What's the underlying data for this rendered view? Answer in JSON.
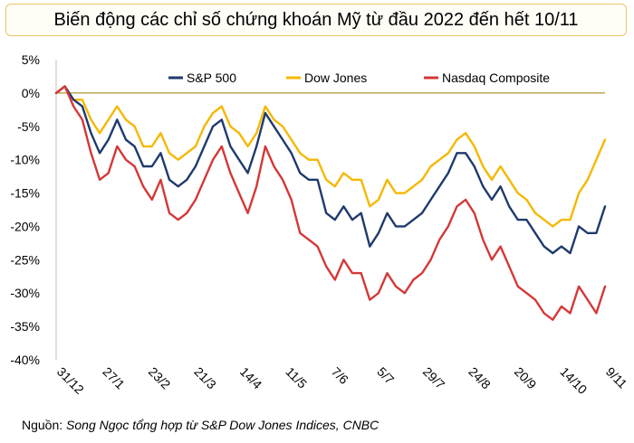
{
  "chart_data": {
    "type": "line",
    "title": "Biến động các chỉ số chứng khoán Mỹ từ đầu 2022 đến hết 10/11",
    "ylim": [
      -40,
      5
    ],
    "y_ticks": [
      5,
      0,
      -5,
      -10,
      -15,
      -20,
      -25,
      -30,
      -35,
      -40
    ],
    "y_tick_labels": [
      "5%",
      "0%",
      "-5%",
      "-10%",
      "-15%",
      "-20%",
      "-25%",
      "-30%",
      "-35%",
      "-40%"
    ],
    "x_tick_labels": [
      "31/12",
      "27/1",
      "23/2",
      "21/3",
      "14/4",
      "11/5",
      "7/6",
      "5/7",
      "29/7",
      "24/8",
      "20/9",
      "14/10",
      "9/11"
    ],
    "grid": false,
    "legend_position": "top",
    "series": [
      {
        "name": "S&P 500",
        "color": "#1f3a6e",
        "values": [
          0,
          1,
          -1,
          -2,
          -6,
          -9,
          -7,
          -4,
          -7,
          -8,
          -11,
          -11,
          -9,
          -13,
          -14,
          -13,
          -11,
          -8,
          -5,
          -4,
          -8,
          -10,
          -12,
          -8,
          -3,
          -5,
          -7,
          -9,
          -12,
          -13,
          -13,
          -18,
          -19,
          -17,
          -19,
          -18,
          -23,
          -21,
          -18,
          -20,
          -20,
          -19,
          -18,
          -16,
          -14,
          -12,
          -9,
          -9,
          -11,
          -14,
          -16,
          -14,
          -17,
          -19,
          -19,
          -21,
          -23,
          -24,
          -23,
          -24,
          -20,
          -21,
          -21,
          -17
        ]
      },
      {
        "name": "Dow Jones",
        "color": "#f5b800",
        "values": [
          0,
          1,
          -1,
          -1,
          -4,
          -6,
          -4,
          -2,
          -4,
          -5,
          -8,
          -8,
          -6,
          -9,
          -10,
          -9,
          -8,
          -5,
          -3,
          -2,
          -5,
          -6,
          -8,
          -6,
          -2,
          -4,
          -5,
          -7,
          -9,
          -10,
          -10,
          -13,
          -14,
          -12,
          -13,
          -13,
          -17,
          -16,
          -13,
          -15,
          -15,
          -14,
          -13,
          -11,
          -10,
          -9,
          -7,
          -6,
          -8,
          -11,
          -13,
          -11,
          -13,
          -15,
          -16,
          -18,
          -19,
          -20,
          -19,
          -19,
          -15,
          -13,
          -10,
          -7
        ]
      },
      {
        "name": "Nasdaq Composite",
        "color": "#d43838",
        "values": [
          0,
          1,
          -2,
          -4,
          -9,
          -13,
          -12,
          -8,
          -10,
          -11,
          -14,
          -16,
          -13,
          -18,
          -19,
          -18,
          -16,
          -13,
          -10,
          -8,
          -12,
          -15,
          -18,
          -14,
          -8,
          -11,
          -13,
          -16,
          -21,
          -22,
          -23,
          -26,
          -28,
          -25,
          -27,
          -27,
          -31,
          -30,
          -27,
          -29,
          -30,
          -28,
          -27,
          -25,
          -22,
          -20,
          -17,
          -16,
          -18,
          -22,
          -25,
          -23,
          -26,
          -29,
          -30,
          -31,
          -33,
          -34,
          -32,
          -33,
          -29,
          -31,
          -33,
          -29
        ]
      }
    ]
  },
  "source": {
    "prefix": "Nguồn: ",
    "body": "Song Ngọc tổng hợp từ S&P Dow Jones Indices, CNBC"
  }
}
